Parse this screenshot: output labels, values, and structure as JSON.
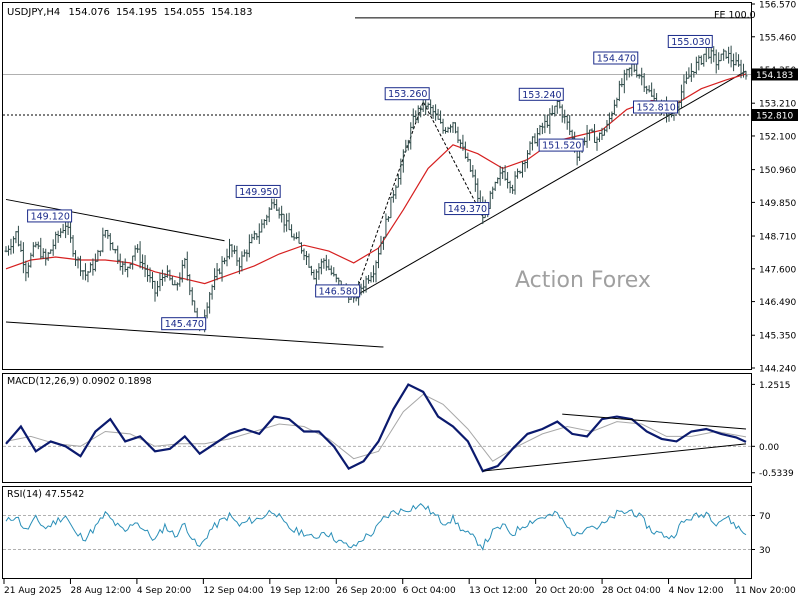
{
  "chart_data": {
    "type": "line",
    "header": {
      "symbol": "USDJPY,H4",
      "open": "154.076",
      "high": "154.195",
      "low": "154.055",
      "close": "154.183"
    },
    "watermark": "Action Forex",
    "fe_label": "FE 100.0",
    "fe_value": 156.1,
    "current_price": 154.183,
    "current_price_label": "154.183",
    "support_level": 152.81,
    "support_label": "152.810",
    "price_axis": {
      "ylim": [
        144.24,
        156.57
      ],
      "ticks": [
        "156.570",
        "155.460",
        "154.350",
        "153.210",
        "152.100",
        "150.960",
        "149.850",
        "148.710",
        "147.600",
        "146.490",
        "145.350",
        "144.240"
      ]
    },
    "x_ticks": [
      "21 Aug 2025",
      "28 Aug 12:00",
      "4 Sep 20:00",
      "12 Sep 04:00",
      "19 Sep 12:00",
      "26 Sep 20:00",
      "6 Oct 04:00",
      "13 Oct 12:00",
      "20 Oct 20:00",
      "28 Oct 04:00",
      "4 Nov 12:00",
      "11 Nov 20:00"
    ],
    "annotations": [
      {
        "text": "149.120",
        "bar": 24,
        "price": 149.12
      },
      {
        "text": "145.470",
        "bar": 78,
        "price": 145.47
      },
      {
        "text": "149.950",
        "bar": 108,
        "price": 149.95
      },
      {
        "text": "146.580",
        "bar": 140,
        "price": 146.58
      },
      {
        "text": "153.260",
        "bar": 168,
        "price": 153.26
      },
      {
        "text": "149.370",
        "bar": 192,
        "price": 149.37
      },
      {
        "text": "153.240",
        "bar": 222,
        "price": 153.24
      },
      {
        "text": "151.520",
        "bar": 230,
        "price": 151.52
      },
      {
        "text": "154.470",
        "bar": 252,
        "price": 154.47
      },
      {
        "text": "152.810",
        "bar": 268,
        "price": 152.81
      },
      {
        "text": "155.030",
        "bar": 282,
        "price": 155.03
      }
    ],
    "price_path": [
      [
        0,
        148.2
      ],
      [
        4,
        148.8
      ],
      [
        8,
        147.6
      ],
      [
        12,
        148.4
      ],
      [
        16,
        147.9
      ],
      [
        20,
        148.6
      ],
      [
        24,
        149.12
      ],
      [
        28,
        148.0
      ],
      [
        32,
        147.4
      ],
      [
        36,
        147.8
      ],
      [
        40,
        148.9
      ],
      [
        44,
        148.2
      ],
      [
        48,
        147.5
      ],
      [
        52,
        148.3
      ],
      [
        56,
        147.6
      ],
      [
        60,
        146.8
      ],
      [
        64,
        147.5
      ],
      [
        68,
        146.9
      ],
      [
        72,
        147.8
      ],
      [
        76,
        146.2
      ],
      [
        78,
        145.47
      ],
      [
        82,
        146.8
      ],
      [
        86,
        147.6
      ],
      [
        90,
        148.3
      ],
      [
        94,
        147.8
      ],
      [
        98,
        148.4
      ],
      [
        102,
        148.9
      ],
      [
        106,
        149.6
      ],
      [
        108,
        149.95
      ],
      [
        112,
        149.2
      ],
      [
        116,
        148.6
      ],
      [
        120,
        148.2
      ],
      [
        124,
        147.4
      ],
      [
        128,
        147.9
      ],
      [
        132,
        147.3
      ],
      [
        136,
        146.9
      ],
      [
        140,
        146.58
      ],
      [
        144,
        147.1
      ],
      [
        148,
        147.6
      ],
      [
        152,
        148.8
      ],
      [
        156,
        150.2
      ],
      [
        160,
        151.4
      ],
      [
        164,
        152.6
      ],
      [
        168,
        153.26
      ],
      [
        172,
        152.9
      ],
      [
        176,
        152.3
      ],
      [
        180,
        152.6
      ],
      [
        184,
        151.6
      ],
      [
        188,
        150.7
      ],
      [
        192,
        149.37
      ],
      [
        196,
        150.2
      ],
      [
        200,
        150.9
      ],
      [
        204,
        150.4
      ],
      [
        208,
        151.2
      ],
      [
        212,
        151.9
      ],
      [
        216,
        152.4
      ],
      [
        220,
        152.8
      ],
      [
        222,
        153.24
      ],
      [
        226,
        152.5
      ],
      [
        230,
        151.52
      ],
      [
        234,
        152.2
      ],
      [
        238,
        152.0
      ],
      [
        242,
        152.4
      ],
      [
        246,
        153.5
      ],
      [
        250,
        154.2
      ],
      [
        252,
        154.47
      ],
      [
        256,
        154.1
      ],
      [
        260,
        153.4
      ],
      [
        264,
        153.1
      ],
      [
        268,
        152.81
      ],
      [
        272,
        153.6
      ],
      [
        276,
        154.3
      ],
      [
        280,
        154.7
      ],
      [
        282,
        155.03
      ],
      [
        286,
        154.6
      ],
      [
        290,
        154.9
      ],
      [
        294,
        154.5
      ],
      [
        298,
        154.183
      ]
    ],
    "ma_path": [
      [
        0,
        147.6
      ],
      [
        10,
        147.9
      ],
      [
        20,
        148.0
      ],
      [
        30,
        147.9
      ],
      [
        40,
        147.9
      ],
      [
        50,
        147.8
      ],
      [
        60,
        147.5
      ],
      [
        70,
        147.3
      ],
      [
        80,
        147.1
      ],
      [
        90,
        147.4
      ],
      [
        100,
        147.7
      ],
      [
        110,
        148.1
      ],
      [
        120,
        148.4
      ],
      [
        130,
        148.2
      ],
      [
        140,
        147.8
      ],
      [
        150,
        148.3
      ],
      [
        160,
        149.6
      ],
      [
        170,
        151.0
      ],
      [
        180,
        151.8
      ],
      [
        190,
        151.5
      ],
      [
        200,
        151.0
      ],
      [
        210,
        151.3
      ],
      [
        220,
        151.9
      ],
      [
        230,
        152.1
      ],
      [
        240,
        152.3
      ],
      [
        250,
        153.0
      ],
      [
        260,
        153.3
      ],
      [
        270,
        153.2
      ],
      [
        280,
        153.7
      ],
      [
        290,
        154.0
      ],
      [
        298,
        154.2
      ]
    ],
    "trendlines": [
      {
        "from": [
          0,
          149.95
        ],
        "to": [
          88,
          148.55
        ]
      },
      {
        "from": [
          0,
          145.8
        ],
        "to": [
          152,
          144.95
        ]
      },
      {
        "from": [
          140,
          146.65
        ],
        "to": [
          298,
          154.3
        ]
      }
    ],
    "macd": {
      "label": "MACD(12,26,9) 0.0902 0.1898",
      "ylim": [
        -0.62,
        1.34
      ],
      "ticks": [
        "1.2515",
        "0.00",
        "-0.5339"
      ],
      "main_path": [
        [
          0,
          0.05
        ],
        [
          6,
          0.4
        ],
        [
          12,
          -0.1
        ],
        [
          18,
          0.1
        ],
        [
          24,
          0.0
        ],
        [
          30,
          -0.2
        ],
        [
          36,
          0.3
        ],
        [
          42,
          0.55
        ],
        [
          48,
          0.1
        ],
        [
          54,
          0.2
        ],
        [
          60,
          -0.1
        ],
        [
          66,
          -0.05
        ],
        [
          72,
          0.2
        ],
        [
          78,
          -0.15
        ],
        [
          84,
          0.05
        ],
        [
          90,
          0.25
        ],
        [
          96,
          0.35
        ],
        [
          102,
          0.25
        ],
        [
          108,
          0.6
        ],
        [
          114,
          0.55
        ],
        [
          120,
          0.3
        ],
        [
          126,
          0.3
        ],
        [
          132,
          0.0
        ],
        [
          138,
          -0.45
        ],
        [
          144,
          -0.3
        ],
        [
          150,
          0.1
        ],
        [
          156,
          0.75
        ],
        [
          162,
          1.25
        ],
        [
          168,
          1.1
        ],
        [
          174,
          0.6
        ],
        [
          180,
          0.4
        ],
        [
          186,
          0.1
        ],
        [
          192,
          -0.5
        ],
        [
          198,
          -0.4
        ],
        [
          204,
          -0.05
        ],
        [
          210,
          0.25
        ],
        [
          216,
          0.35
        ],
        [
          222,
          0.5
        ],
        [
          228,
          0.25
        ],
        [
          234,
          0.2
        ],
        [
          240,
          0.55
        ],
        [
          246,
          0.6
        ],
        [
          252,
          0.55
        ],
        [
          258,
          0.3
        ],
        [
          264,
          0.15
        ],
        [
          270,
          0.1
        ],
        [
          276,
          0.3
        ],
        [
          282,
          0.35
        ],
        [
          288,
          0.25
        ],
        [
          294,
          0.18
        ],
        [
          298,
          0.09
        ]
      ],
      "signal_path": [
        [
          0,
          0.1
        ],
        [
          10,
          0.2
        ],
        [
          20,
          0.05
        ],
        [
          30,
          0.0
        ],
        [
          40,
          0.3
        ],
        [
          50,
          0.25
        ],
        [
          60,
          0.0
        ],
        [
          70,
          0.05
        ],
        [
          80,
          0.05
        ],
        [
          90,
          0.15
        ],
        [
          100,
          0.3
        ],
        [
          110,
          0.45
        ],
        [
          120,
          0.4
        ],
        [
          130,
          0.15
        ],
        [
          140,
          -0.25
        ],
        [
          150,
          -0.1
        ],
        [
          160,
          0.7
        ],
        [
          168,
          1.05
        ],
        [
          176,
          0.85
        ],
        [
          186,
          0.35
        ],
        [
          196,
          -0.3
        ],
        [
          206,
          0.0
        ],
        [
          216,
          0.25
        ],
        [
          226,
          0.4
        ],
        [
          236,
          0.3
        ],
        [
          246,
          0.5
        ],
        [
          256,
          0.45
        ],
        [
          266,
          0.2
        ],
        [
          276,
          0.2
        ],
        [
          286,
          0.3
        ],
        [
          298,
          0.19
        ]
      ],
      "trendlines": [
        {
          "from": [
            192,
            -0.5
          ],
          "to": [
            298,
            0.05
          ]
        },
        {
          "from": [
            224,
            0.65
          ],
          "to": [
            298,
            0.35
          ]
        }
      ]
    },
    "rsi": {
      "label": "RSI(14) 47.5542",
      "ylim": [
        0,
        100
      ],
      "levels": [
        70,
        30
      ],
      "ticks": [
        "70",
        "30"
      ],
      "path": [
        [
          0,
          62
        ],
        [
          4,
          70
        ],
        [
          8,
          52
        ],
        [
          12,
          66
        ],
        [
          16,
          55
        ],
        [
          20,
          63
        ],
        [
          24,
          70
        ],
        [
          28,
          48
        ],
        [
          32,
          44
        ],
        [
          36,
          56
        ],
        [
          40,
          72
        ],
        [
          44,
          60
        ],
        [
          48,
          50
        ],
        [
          52,
          64
        ],
        [
          56,
          52
        ],
        [
          60,
          41
        ],
        [
          64,
          58
        ],
        [
          68,
          46
        ],
        [
          72,
          60
        ],
        [
          76,
          38
        ],
        [
          78,
          32
        ],
        [
          82,
          52
        ],
        [
          86,
          62
        ],
        [
          90,
          70
        ],
        [
          94,
          58
        ],
        [
          98,
          64
        ],
        [
          102,
          66
        ],
        [
          106,
          74
        ],
        [
          108,
          76
        ],
        [
          112,
          60
        ],
        [
          116,
          52
        ],
        [
          120,
          50
        ],
        [
          124,
          42
        ],
        [
          128,
          52
        ],
        [
          132,
          44
        ],
        [
          136,
          36
        ],
        [
          140,
          32
        ],
        [
          144,
          44
        ],
        [
          148,
          50
        ],
        [
          152,
          66
        ],
        [
          156,
          74
        ],
        [
          160,
          76
        ],
        [
          164,
          80
        ],
        [
          168,
          82
        ],
        [
          172,
          72
        ],
        [
          176,
          62
        ],
        [
          180,
          66
        ],
        [
          184,
          52
        ],
        [
          188,
          44
        ],
        [
          192,
          34
        ],
        [
          196,
          50
        ],
        [
          200,
          58
        ],
        [
          204,
          48
        ],
        [
          208,
          58
        ],
        [
          212,
          64
        ],
        [
          216,
          68
        ],
        [
          220,
          70
        ],
        [
          222,
          72
        ],
        [
          226,
          56
        ],
        [
          230,
          46
        ],
        [
          234,
          60
        ],
        [
          238,
          56
        ],
        [
          242,
          62
        ],
        [
          246,
          72
        ],
        [
          250,
          74
        ],
        [
          252,
          76
        ],
        [
          256,
          66
        ],
        [
          260,
          52
        ],
        [
          264,
          48
        ],
        [
          268,
          44
        ],
        [
          272,
          60
        ],
        [
          276,
          68
        ],
        [
          280,
          70
        ],
        [
          282,
          74
        ],
        [
          286,
          62
        ],
        [
          290,
          68
        ],
        [
          294,
          58
        ],
        [
          298,
          47.55
        ]
      ]
    }
  }
}
